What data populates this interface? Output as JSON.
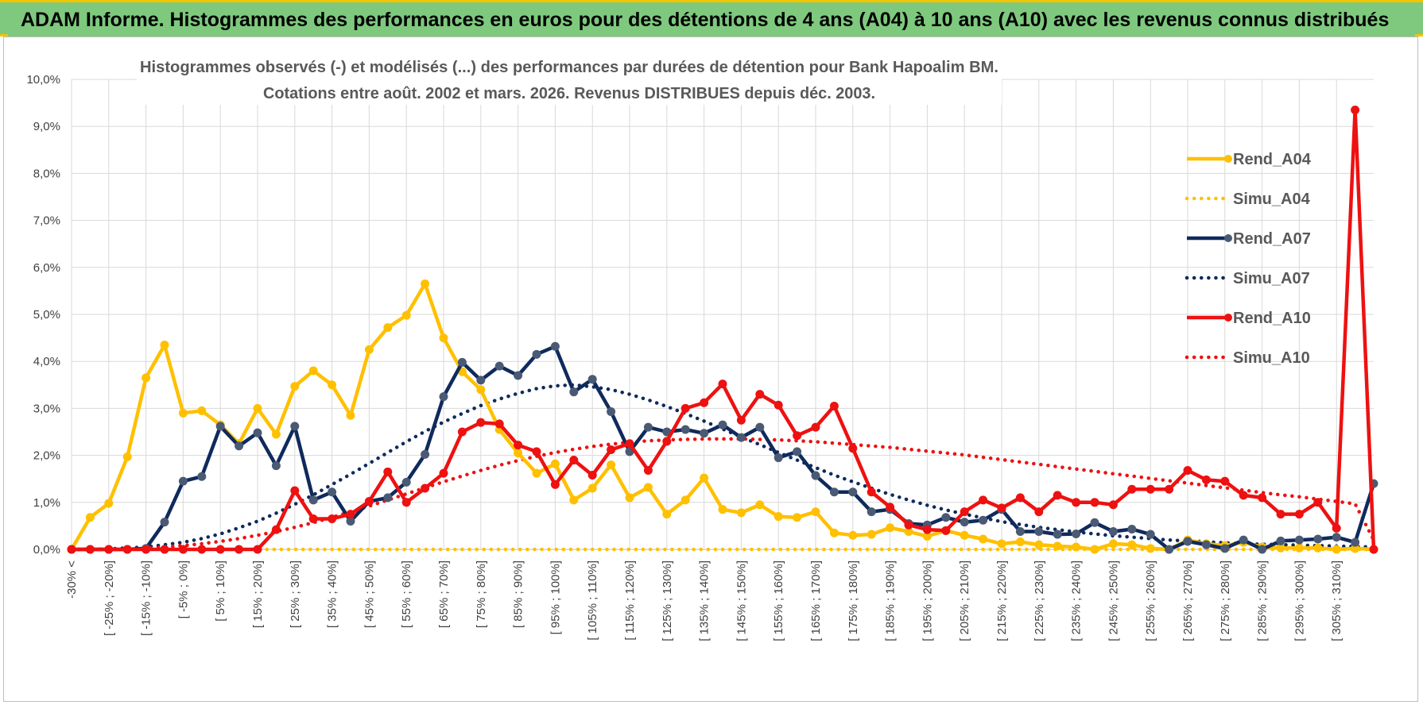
{
  "banner": {
    "title": "ADAM Informe. Histogrammes des performances en euros pour des détentions de 4 ans (A04) à 10 ans (A10) avec les revenus connus distribués"
  },
  "colors": {
    "banner_bg": "#7ec97e",
    "accent": "#f2c500",
    "a04": "#ffc000",
    "a07": "#0f2a5c",
    "a07_marker": "#4a5a74",
    "a10": "#ee1111"
  },
  "chart_data": {
    "type": "line",
    "title_line1": "Histogrammes observés (-) et modélisés (...) des performances par durées de détention pour Bank Hapoalim BM.",
    "title_line2": "Cotations entre août. 2002 et mars. 2026. Revenus DISTRIBUES depuis déc. 2003.",
    "ylim": [
      0,
      10
    ],
    "yticks": [
      "0,0%",
      "1,0%",
      "2,0%",
      "3,0%",
      "4,0%",
      "5,0%",
      "6,0%",
      "7,0%",
      "8,0%",
      "9,0%",
      "10,0%"
    ],
    "grid": true,
    "legend_position": "right",
    "categories": [
      "-30% <",
      "[ -30% ; -25%]",
      "[ -25% ; -20%]",
      "[ -20% ; -15%]",
      "[ -15% ; -10%]",
      "[ -10% ; -5%]",
      "[ -5% ; 0%]",
      "[ 0% ; 5%]",
      "[ 5% ; 10%]",
      "[ 10% ; 15%]",
      "[ 15% ; 20%]",
      "[ 20% ; 25%]",
      "[ 25% ; 30%]",
      "[ 30% ; 35%]",
      "[ 35% ; 40%]",
      "[ 40% ; 45%]",
      "[ 45% ; 50%]",
      "[ 50% ; 55%]",
      "[ 55% ; 60%]",
      "[ 60% ; 65%]",
      "[ 65% ; 70%]",
      "[ 70% ; 75%]",
      "[ 75% ; 80%]",
      "[ 80% ; 85%]",
      "[ 85% ; 90%]",
      "[ 90% ; 95%]",
      "[ 95% ; 100%]",
      "[ 100% ; 105%]",
      "[ 105% ; 110%]",
      "[ 110% ; 115%]",
      "[ 115% ; 120%]",
      "[ 120% ; 125%]",
      "[ 125% ; 130%]",
      "[ 130% ; 135%]",
      "[ 135% ; 140%]",
      "[ 140% ; 145%]",
      "[ 145% ; 150%]",
      "[ 150% ; 155%]",
      "[ 155% ; 160%]",
      "[ 160% ; 165%]",
      "[ 165% ; 170%]",
      "[ 170% ; 175%]",
      "[ 175% ; 180%]",
      "[ 180% ; 185%]",
      "[ 185% ; 190%]",
      "[ 190% ; 195%]",
      "[ 195% ; 200%]",
      "[ 200% ; 205%]",
      "[ 205% ; 210%]",
      "[ 210% ; 215%]",
      "[ 215% ; 220%]",
      "[ 220% ; 225%]",
      "[ 225% ; 230%]",
      "[ 230% ; 235%]",
      "[ 235% ; 240%]",
      "[ 240% ; 245%]",
      "[ 245% ; 250%]",
      "[ 250% ; 255%]",
      "[ 255% ; 260%]",
      "[ 260% ; 265%]",
      "[ 265% ; 270%]",
      "[ 270% ; 275%]",
      "[ 275% ; 280%]",
      "[ 280% ; 285%]",
      "[ 285% ; 290%]",
      "[ 290% ; 295%]",
      "[ 295% ; 300%]",
      "[ 300% ; 305%]",
      "[ 305% ; 310%]",
      "[ 310% ; 315%]",
      "315% <"
    ],
    "visible_tick_labels": [
      "-30% <",
      "[ -25% ; -20%]",
      "[ -15% ; -10%]",
      "[ -5% ; 0%]",
      "[ 5% ; 10%]",
      "[ 15% ; 20%]",
      "[ 25% ; 30%]",
      "[ 35% ; 40%]",
      "[ 45% ; 50%]",
      "[ 55% ; 60%]",
      "[ 65% ; 70%]",
      "[ 75% ; 80%]",
      "[ 85% ; 90%]",
      "[ 95% ; 100%]",
      "[ 105% ; 110%]",
      "[ 115% ; 120%]",
      "[ 125% ; 130%]",
      "[ 135% ; 140%]",
      "[ 145% ; 150%]",
      "[ 155% ; 160%]",
      "[ 165% ; 170%]",
      "[ 175% ; 180%]",
      "[ 185% ; 190%]",
      "[ 195% ; 200%]",
      "[ 205% ; 210%]",
      "[ 215% ; 220%]",
      "[ 225% ; 230%]",
      "[ 235% ; 240%]",
      "[ 245% ; 250%]",
      "[ 255% ; 260%]",
      "[ 265% ; 270%]",
      "[ 275% ; 280%]",
      "[ 285% ; 290%]",
      "[ 295% ; 300%]",
      "[ 305% ; 310%]"
    ],
    "series": [
      {
        "name": "Rend_A04",
        "style": "solid",
        "color": "#ffc000",
        "values": [
          0.0,
          0.68,
          0.98,
          1.97,
          3.65,
          4.35,
          2.9,
          2.95,
          2.65,
          2.25,
          3.0,
          2.45,
          3.47,
          3.8,
          3.5,
          2.85,
          4.25,
          4.72,
          4.98,
          5.65,
          4.5,
          3.78,
          3.4,
          2.55,
          2.05,
          1.62,
          1.82,
          1.05,
          1.3,
          1.8,
          1.1,
          1.32,
          0.75,
          1.05,
          1.52,
          0.85,
          0.78,
          0.95,
          0.7,
          0.68,
          0.8,
          0.35,
          0.3,
          0.32,
          0.46,
          0.38,
          0.28,
          0.4,
          0.3,
          0.22,
          0.12,
          0.16,
          0.1,
          0.07,
          0.05,
          0.0,
          0.12,
          0.1,
          0.02,
          0.0,
          0.2,
          0.12,
          0.08,
          0.15,
          0.05,
          0.03,
          0.03,
          0.03,
          0.0,
          0.02,
          0.0
        ]
      },
      {
        "name": "Simu_A04",
        "style": "dotted",
        "color": "#ffc000",
        "values": [
          0.0,
          0.0,
          0.0,
          0.0,
          0.0,
          0.0,
          0.0,
          0.0,
          0.0,
          0.0,
          0.0,
          0.0,
          0.0,
          0.0,
          0.0,
          0.0,
          0.0,
          0.0,
          0.0,
          0.0,
          0.0,
          0.0,
          0.0,
          0.0,
          0.0,
          0.0,
          0.0,
          0.0,
          0.0,
          0.0,
          0.0,
          0.0,
          0.0,
          0.0,
          0.0,
          0.0,
          0.0,
          0.0,
          0.0,
          0.0,
          0.0,
          0.0,
          0.0,
          0.0,
          0.0,
          0.0,
          0.0,
          0.0,
          0.0,
          0.0,
          0.0,
          0.0,
          0.0,
          0.0,
          0.0,
          0.0,
          0.0,
          0.0,
          0.0,
          0.0,
          0.0,
          0.0,
          0.0,
          0.0,
          0.0,
          0.0,
          0.0,
          0.0,
          0.0,
          0.0,
          0.0
        ]
      },
      {
        "name": "Rend_A07",
        "style": "solid",
        "color": "#0f2a5c",
        "values": [
          0.0,
          0.0,
          0.0,
          0.0,
          0.02,
          0.58,
          1.45,
          1.55,
          2.62,
          2.2,
          2.48,
          1.78,
          2.62,
          1.05,
          1.22,
          0.6,
          1.02,
          1.1,
          1.43,
          2.02,
          3.25,
          3.98,
          3.6,
          3.9,
          3.7,
          4.15,
          4.32,
          3.35,
          3.62,
          2.93,
          2.08,
          2.6,
          2.5,
          2.55,
          2.47,
          2.65,
          2.38,
          2.6,
          1.95,
          2.08,
          1.57,
          1.22,
          1.22,
          0.8,
          0.85,
          0.55,
          0.52,
          0.68,
          0.58,
          0.62,
          0.85,
          0.38,
          0.38,
          0.32,
          0.33,
          0.57,
          0.38,
          0.43,
          0.32,
          0.0,
          0.17,
          0.1,
          0.02,
          0.2,
          0.0,
          0.18,
          0.2,
          0.22,
          0.26,
          0.15,
          1.4
        ]
      },
      {
        "name": "Simu_A07",
        "style": "dotted",
        "color": "#0f2a5c",
        "values": [
          0.0,
          0.0,
          0.01,
          0.03,
          0.05,
          0.1,
          0.15,
          0.23,
          0.33,
          0.46,
          0.6,
          0.77,
          0.96,
          1.16,
          1.38,
          1.6,
          1.83,
          2.06,
          2.29,
          2.51,
          2.71,
          2.89,
          3.06,
          3.2,
          3.32,
          3.42,
          3.48,
          3.5,
          3.46,
          3.4,
          3.3,
          3.18,
          3.04,
          2.89,
          2.73,
          2.56,
          2.39,
          2.23,
          2.06,
          1.9,
          1.74,
          1.58,
          1.44,
          1.3,
          1.17,
          1.05,
          0.94,
          0.84,
          0.75,
          0.67,
          0.59,
          0.53,
          0.47,
          0.42,
          0.37,
          0.33,
          0.29,
          0.26,
          0.23,
          0.2,
          0.18,
          0.16,
          0.14,
          0.12,
          0.11,
          0.1,
          0.09,
          0.08,
          0.07,
          0.06,
          0.05
        ]
      },
      {
        "name": "Rend_A10",
        "style": "solid",
        "color": "#ee1111",
        "values": [
          0.0,
          0.0,
          0.0,
          0.0,
          0.0,
          0.0,
          0.0,
          0.0,
          0.0,
          0.0,
          0.0,
          0.42,
          1.25,
          0.65,
          0.65,
          0.75,
          1.02,
          1.65,
          1.0,
          1.3,
          1.62,
          2.5,
          2.7,
          2.67,
          2.22,
          2.08,
          1.38,
          1.9,
          1.58,
          2.12,
          2.25,
          1.68,
          2.3,
          3.0,
          3.12,
          3.52,
          2.75,
          3.3,
          3.07,
          2.42,
          2.6,
          3.05,
          2.15,
          1.22,
          0.9,
          0.52,
          0.42,
          0.4,
          0.8,
          1.05,
          0.88,
          1.1,
          0.8,
          1.15,
          1.0,
          1.0,
          0.95,
          1.28,
          1.28,
          1.28,
          1.68,
          1.48,
          1.45,
          1.15,
          1.1,
          0.75,
          0.75,
          1.0,
          0.45,
          9.35,
          0.0
        ]
      },
      {
        "name": "Simu_A10",
        "style": "dotted",
        "color": "#ee1111",
        "values": [
          0.0,
          0.0,
          0.0,
          0.0,
          0.02,
          0.05,
          0.08,
          0.12,
          0.17,
          0.23,
          0.3,
          0.38,
          0.47,
          0.57,
          0.68,
          0.8,
          0.92,
          1.05,
          1.18,
          1.31,
          1.44,
          1.56,
          1.68,
          1.79,
          1.89,
          1.98,
          2.06,
          2.13,
          2.19,
          2.24,
          2.28,
          2.31,
          2.33,
          2.34,
          2.35,
          2.35,
          2.35,
          2.34,
          2.33,
          2.31,
          2.29,
          2.26,
          2.23,
          2.2,
          2.17,
          2.13,
          2.09,
          2.05,
          2.01,
          1.96,
          1.91,
          1.86,
          1.81,
          1.76,
          1.71,
          1.66,
          1.61,
          1.56,
          1.51,
          1.46,
          1.41,
          1.36,
          1.31,
          1.26,
          1.21,
          1.16,
          1.12,
          1.07,
          1.02,
          0.97,
          0.2
        ]
      }
    ]
  }
}
